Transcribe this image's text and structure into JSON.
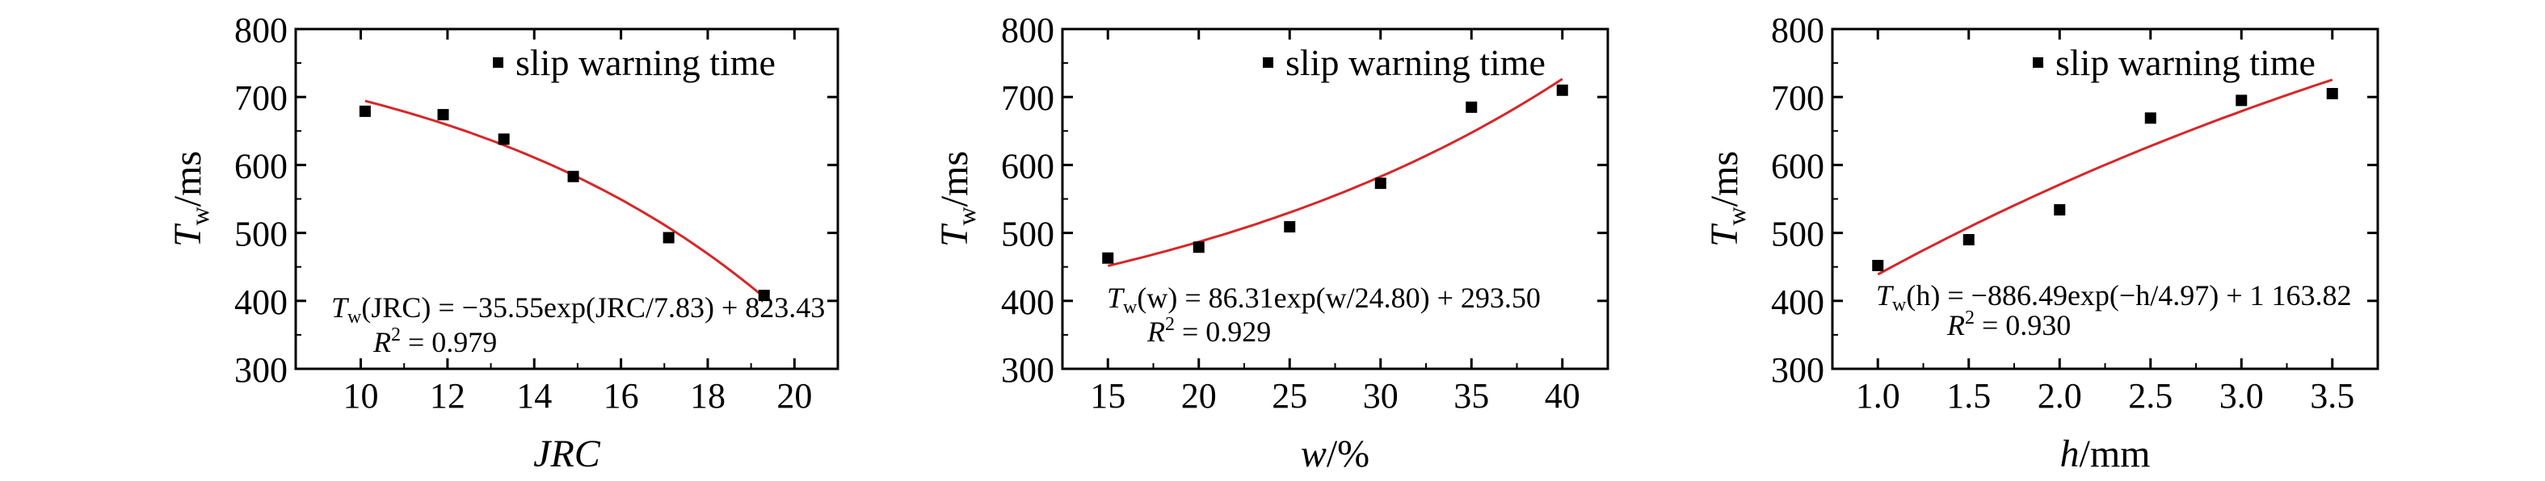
{
  "chart_data": [
    {
      "type": "scatter",
      "title": "",
      "xlabel": "JRC",
      "ylabel": {
        "main": "T",
        "sub": "w",
        "unit": "/ms"
      },
      "xlim": [
        8.5,
        21
      ],
      "ylim": [
        300,
        800
      ],
      "xticks": [
        10,
        12,
        14,
        16,
        18,
        20
      ],
      "yticks": [
        300,
        400,
        500,
        600,
        700,
        800
      ],
      "grid": false,
      "legend_position": "top-right",
      "series": [
        {
          "name": "slip warning time",
          "marker": "square",
          "color": "#000000",
          "x": [
            10.1,
            11.9,
            13.3,
            14.9,
            17.1,
            19.3
          ],
          "y": [
            679,
            674,
            638,
            583,
            493,
            408
          ]
        }
      ],
      "fit": {
        "color": "#d62728",
        "model": "T = -35.55*exp(x/7.83) + 823.43",
        "a": -35.55,
        "b": 7.83,
        "sign": 1,
        "c": 823.43,
        "x_range": [
          10.1,
          19.3
        ]
      },
      "annotation": {
        "lhs": "T",
        "sub": "w",
        "arg": "(JRC) = −35.55exp(JRC/7.83) + 823.43",
        "r2": "R",
        "r2_value": " = 0.979"
      }
    },
    {
      "type": "scatter",
      "title": "",
      "xlabel": "w/%",
      "ylabel": {
        "main": "T",
        "sub": "w",
        "unit": "/ms"
      },
      "xlim": [
        12.5,
        42.5
      ],
      "ylim": [
        300,
        800
      ],
      "xticks": [
        15,
        20,
        25,
        30,
        35,
        40
      ],
      "yticks": [
        300,
        400,
        500,
        600,
        700,
        800
      ],
      "grid": false,
      "legend_position": "top-right",
      "series": [
        {
          "name": "slip warning time",
          "marker": "square",
          "color": "#000000",
          "x": [
            15,
            20,
            25,
            30,
            35,
            40
          ],
          "y": [
            463,
            479,
            509,
            573,
            685,
            710
          ]
        }
      ],
      "fit": {
        "color": "#d62728",
        "model": "T = 86.31*exp(w/24.80) + 293.50",
        "a": 86.31,
        "b": 24.8,
        "sign": 1,
        "c": 293.5,
        "x_range": [
          15,
          40
        ]
      },
      "annotation": {
        "lhs": "T",
        "sub": "w",
        "arg": "(w) = 86.31exp(w/24.80) + 293.50",
        "r2": "R",
        "r2_value": " = 0.929"
      }
    },
    {
      "type": "scatter",
      "title": "",
      "xlabel": "h/mm",
      "ylabel": {
        "main": "T",
        "sub": "w",
        "unit": "/ms"
      },
      "xlim": [
        0.75,
        3.75
      ],
      "ylim": [
        300,
        800
      ],
      "xticks": [
        "1.0",
        "1.5",
        "2.0",
        "2.5",
        "3.0",
        "3.5"
      ],
      "yticks": [
        300,
        400,
        500,
        600,
        700,
        800
      ],
      "grid": false,
      "legend_position": "top-right",
      "series": [
        {
          "name": "slip warning time",
          "marker": "square",
          "color": "#000000",
          "x": [
            1.0,
            1.5,
            2.0,
            2.5,
            3.0,
            3.5
          ],
          "y": [
            452,
            490,
            534,
            669,
            695,
            705
          ]
        }
      ],
      "fit": {
        "color": "#d62728",
        "model": "T = -886.49*exp(-h/4.97) + 1163.82",
        "a": -886.49,
        "b": 4.97,
        "sign": -1,
        "c": 1163.82,
        "x_range": [
          1.0,
          3.5
        ]
      },
      "annotation": {
        "lhs": "T",
        "sub": "w",
        "arg": "(h) = −886.49exp(−h/4.97) + 1 163.82",
        "r2": "R",
        "r2_value": " = 0.930"
      }
    }
  ]
}
